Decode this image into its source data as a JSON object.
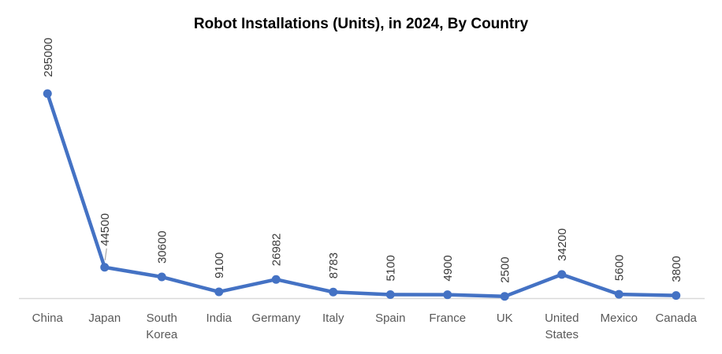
{
  "title": "Robot Installations (Units), in 2024, By Country",
  "chart_data": {
    "type": "line",
    "title": "Robot Installations (Units), in 2024, By Country",
    "categories": [
      "China",
      "Japan",
      "South Korea",
      "India",
      "Germany",
      "Italy",
      "Spain",
      "France",
      "UK",
      "United States",
      "Mexico",
      "Canada"
    ],
    "values": [
      295000,
      44500,
      30600,
      9100,
      26982,
      8783,
      5100,
      4900,
      2500,
      34200,
      5600,
      3800
    ],
    "data_labels": [
      "295000",
      "44500",
      "30600",
      "9100",
      "26982",
      "8783",
      "5100",
      "4900",
      "2500",
      "34200",
      "5600",
      "3800"
    ],
    "data_label_rotation_deg": 90,
    "xlabel": "",
    "ylabel": "",
    "ylim": [
      0,
      295000
    ],
    "grid": false,
    "legend": false,
    "y_axis_visible": false,
    "leader_line_category": "Japan"
  },
  "colors": {
    "line": "#4472C4",
    "marker": "#4472C4",
    "axis_line": "#D9D9D9",
    "category_label": "#595959",
    "data_label": "#3A3A3A",
    "leader_line": "#A6A6A6",
    "title": "#000000",
    "background": "#FFFFFF"
  }
}
